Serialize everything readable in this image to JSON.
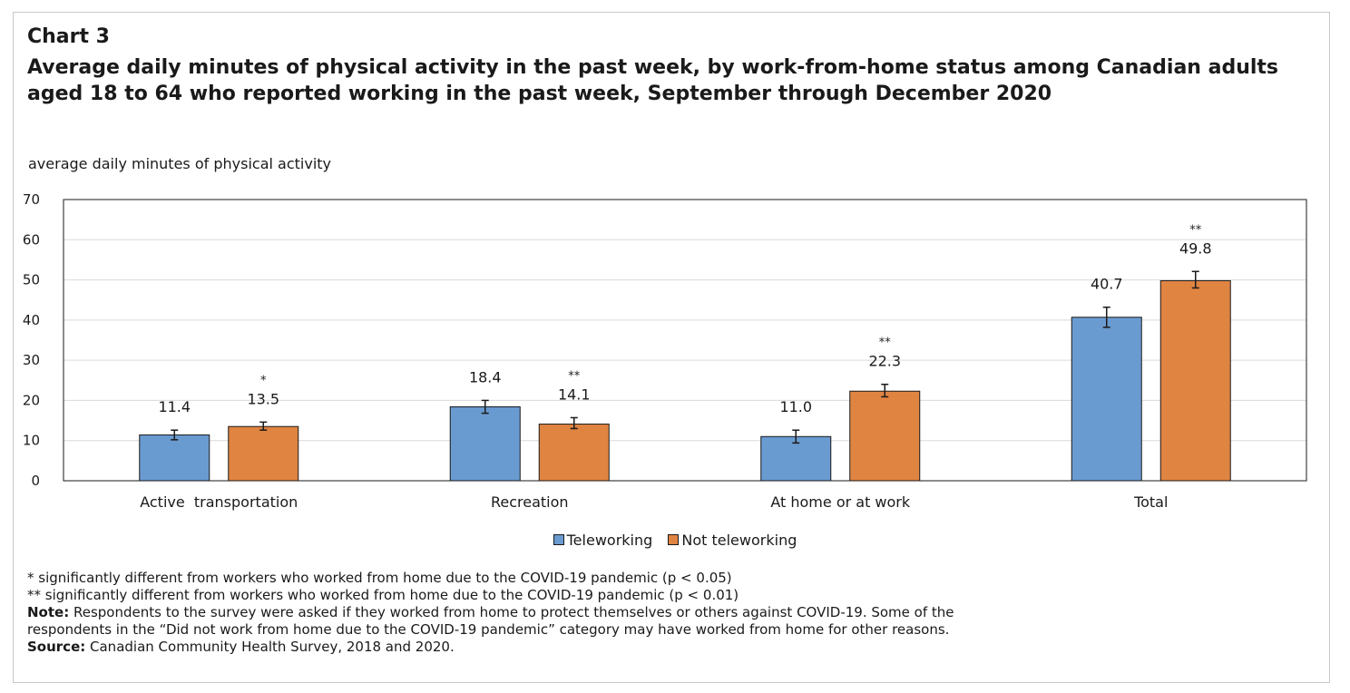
{
  "chart_label": "Chart 3",
  "chart_title": "Average daily minutes of physical activity in the past week, by work-from-home status among Canadian adults aged 18 to 64 who reported working in the past week, September through December 2020",
  "unit_label": "average daily minutes of physical activity",
  "chart_data": {
    "type": "bar",
    "categories": [
      "Active  transportation",
      "Recreation",
      "At home or at work",
      "Total"
    ],
    "series": [
      {
        "name": "Teleworking",
        "color": "#6a9bd0",
        "values": [
          11.4,
          18.4,
          11.0,
          40.7
        ],
        "labels": [
          "11.4",
          "18.4",
          "11.0",
          "40.7"
        ],
        "error_low": [
          10.2,
          16.8,
          9.4,
          38.2
        ],
        "error_high": [
          12.6,
          20.0,
          12.6,
          43.2
        ],
        "significance": [
          "",
          "",
          "",
          ""
        ]
      },
      {
        "name": "Not teleworking",
        "color": "#e08442",
        "values": [
          13.5,
          14.1,
          22.3,
          49.8
        ],
        "labels": [
          "13.5",
          "14.1",
          "22.3",
          "49.8"
        ],
        "error_low": [
          12.6,
          13.0,
          20.9,
          48.0
        ],
        "error_high": [
          14.6,
          15.7,
          24.0,
          52.1
        ],
        "significance": [
          "*",
          "**",
          "**",
          "**"
        ]
      }
    ],
    "ylim": [
      0,
      70
    ],
    "yticks": [
      0,
      10,
      20,
      30,
      40,
      50,
      60,
      70
    ],
    "grid": true,
    "legend_position": "bottom"
  },
  "notes": {
    "sig1": "* significantly different from workers who worked from home due to the COVID-19 pandemic (p < 0.05)",
    "sig2": "** significantly different from workers who worked from home due to the COVID-19 pandemic (p < 0.01)",
    "note_label": "Note:",
    "note_text": " Respondents to the survey were asked if they worked from home to protect themselves or others against COVID-19. Some of the",
    "note_text2": "respondents in the “Did not work from home due to the COVID-19 pandemic” category may have worked from home for other reasons.",
    "source_label": "Source:",
    "source_text": " Canadian Community Health Survey, 2018 and 2020."
  }
}
